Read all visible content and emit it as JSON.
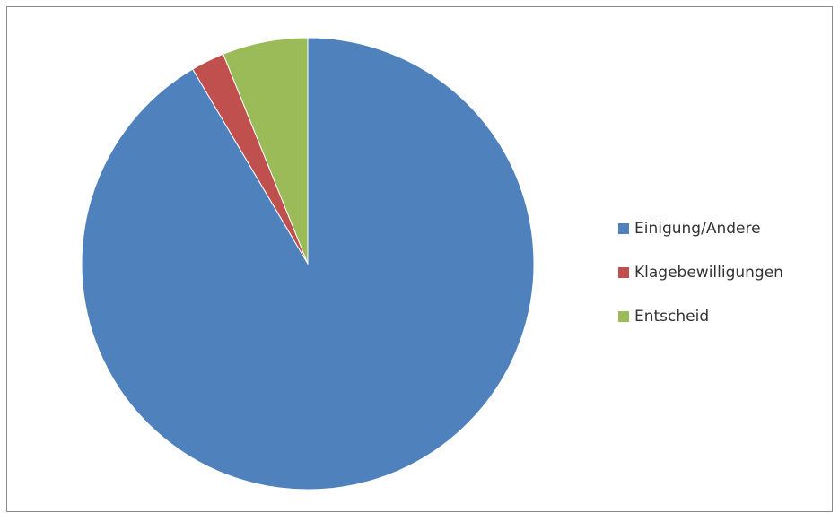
{
  "chart_data": {
    "type": "pie",
    "title": "",
    "categories": [
      "Einigung/Andere",
      "Klagebewilligungen",
      "Entscheid"
    ],
    "values": [
      91.5,
      2.4,
      6.1
    ],
    "colors": [
      "#4F81BD",
      "#C0504D",
      "#9BBB59"
    ],
    "start_angle_deg": 0,
    "direction": "clockwise",
    "legend_position": "right"
  }
}
